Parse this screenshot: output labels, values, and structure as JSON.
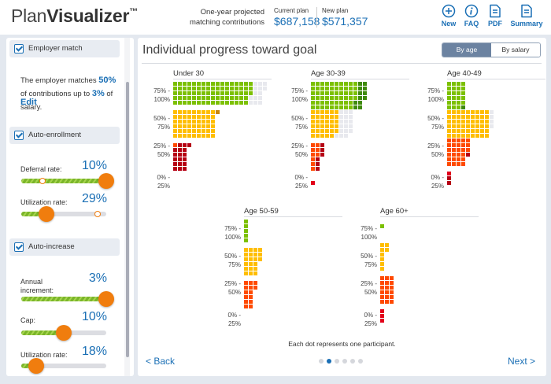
{
  "app": {
    "logo_thin": "Plan",
    "logo_bold": "Visualizer",
    "logo_mark": "™"
  },
  "header": {
    "projection_label_line1": "One-year projected",
    "projection_label_line2": "matching contributions",
    "current_plan_label": "Current plan",
    "current_plan_value": "$687,158",
    "new_plan_label": "New plan",
    "new_plan_value": "$571,357",
    "tools": [
      {
        "label": "New",
        "icon": "plus-circle-icon"
      },
      {
        "label": "FAQ",
        "icon": "info-circle-icon"
      },
      {
        "label": "PDF",
        "icon": "document-icon"
      },
      {
        "label": "Summary",
        "icon": "document-icon"
      }
    ]
  },
  "sidebar": {
    "employer_match": {
      "title": "Employer match",
      "checked": true,
      "text_1": "The employer matches ",
      "match_pct": "50%",
      "text_2": " of contributions up to ",
      "salary_pct": "3%",
      "text_3": " of salary.",
      "edit_label": "Edit"
    },
    "auto_enrollment": {
      "title": "Auto-enrollment",
      "checked": true,
      "sliders": [
        {
          "label": "Deferral rate:",
          "value": "10%",
          "fill": 1.0,
          "marker": 0.25
        },
        {
          "label": "Utilization rate:",
          "value": "29%",
          "fill": 0.3,
          "marker": 0.9
        }
      ]
    },
    "auto_increase": {
      "title": "Auto-increase",
      "checked": true,
      "sliders": [
        {
          "label": "Annual increment:",
          "value": "3%",
          "fill": 1.0
        },
        {
          "label": "Cap:",
          "value": "10%",
          "fill": 0.5
        },
        {
          "label": "Utilization rate:",
          "value": "18%",
          "fill": 0.18
        }
      ]
    }
  },
  "main": {
    "title": "Individual progress toward goal",
    "toggle": {
      "by_age": "By age",
      "by_salary": "By salary",
      "active": "by_age"
    },
    "footnote": "Each dot represents one participant.",
    "back_label": "< Back",
    "next_label": "Next >",
    "pager": {
      "pages": 6,
      "current": 2
    }
  },
  "colors": {
    "green": "#7cc000",
    "green_dark": "#3f8a0c",
    "yellow": "#ffbe00",
    "yellow_dark": "#c8860e",
    "orange": "#ff4a00",
    "red": "#e2001a",
    "red_dark": "#b50013",
    "gray": "#e8e9ee",
    "accent": "#1a6fb5",
    "knob": "#f07d0e"
  },
  "chart_data": {
    "type": "dot-matrix",
    "title": "Individual progress toward goal",
    "unit": "Each dot represents one participant.",
    "bands": [
      "75% - 100%",
      "50% - 75%",
      "25% - 50%",
      "0% - 25%"
    ],
    "groups": [
      {
        "name": "Under 30",
        "rows": [
          [
            [
              "green",
              17
            ],
            [
              "gray",
              3
            ]
          ],
          [
            [
              "green",
              17
            ],
            [
              "gray",
              3
            ]
          ],
          [
            [
              "green",
              17
            ],
            [
              "gray",
              2
            ]
          ],
          [
            [
              "green",
              16
            ],
            [
              "gray",
              3
            ]
          ],
          [
            [
              "green",
              16
            ],
            [
              "gray",
              3
            ]
          ],
          null,
          [
            [
              "yellow",
              9
            ],
            [
              "yellow_dark",
              1
            ]
          ],
          [
            [
              "yellow",
              9
            ]
          ],
          [
            [
              "yellow",
              9
            ]
          ],
          [
            [
              "yellow",
              9
            ]
          ],
          [
            [
              "yellow",
              9
            ]
          ],
          [
            [
              "yellow",
              9
            ]
          ],
          null,
          [
            [
              "orange",
              1
            ],
            [
              "red_dark",
              3
            ]
          ],
          [
            [
              "red_dark",
              3
            ]
          ],
          [
            [
              "red_dark",
              3
            ]
          ],
          [
            [
              "red_dark",
              3
            ]
          ],
          [
            [
              "red_dark",
              3
            ]
          ],
          [
            [
              "red_dark",
              3
            ]
          ],
          null,
          [],
          []
        ]
      },
      {
        "name": "Age 30-39",
        "rows": [
          [
            [
              "green",
              10
            ],
            [
              "green_dark",
              2
            ]
          ],
          [
            [
              "green",
              10
            ],
            [
              "green_dark",
              2
            ]
          ],
          [
            [
              "green",
              10
            ],
            [
              "green_dark",
              2
            ]
          ],
          [
            [
              "green",
              10
            ],
            [
              "green_dark",
              2
            ]
          ],
          [
            [
              "green",
              9
            ],
            [
              "green_dark",
              2
            ]
          ],
          [
            [
              "green",
              9
            ],
            [
              "green_dark",
              2
            ]
          ],
          [
            [
              "yellow",
              6
            ],
            [
              "gray",
              3
            ]
          ],
          [
            [
              "yellow",
              6
            ],
            [
              "gray",
              3
            ]
          ],
          [
            [
              "yellow",
              6
            ],
            [
              "gray",
              3
            ]
          ],
          [
            [
              "yellow",
              6
            ],
            [
              "gray",
              3
            ]
          ],
          [
            [
              "yellow",
              6
            ],
            [
              "gray",
              3
            ]
          ],
          [
            [
              "yellow",
              5
            ],
            [
              "gray",
              3
            ]
          ],
          null,
          [
            [
              "orange",
              2
            ],
            [
              "red_dark",
              1
            ]
          ],
          [
            [
              "orange",
              2
            ],
            [
              "red_dark",
              1
            ]
          ],
          [
            [
              "orange",
              2
            ],
            [
              "red_dark",
              1
            ]
          ],
          [
            [
              "orange",
              1
            ],
            [
              "red_dark",
              1
            ]
          ],
          [
            [
              "orange",
              1
            ],
            [
              "red_dark",
              1
            ]
          ],
          [
            [
              "orange",
              1
            ],
            [
              "red_dark",
              1
            ]
          ],
          null,
          null,
          [
            [
              "red",
              1
            ]
          ]
        ]
      },
      {
        "name": "Age 40-49",
        "rows": [
          [
            [
              "green",
              4
            ]
          ],
          [
            [
              "green",
              4
            ]
          ],
          [
            [
              "green",
              4
            ]
          ],
          [
            [
              "green",
              4
            ]
          ],
          [
            [
              "green",
              4
            ]
          ],
          [
            [
              "green",
              3
            ],
            [
              "green_dark",
              1
            ]
          ],
          [
            [
              "yellow",
              9
            ],
            [
              "gray",
              1
            ]
          ],
          [
            [
              "yellow",
              9
            ],
            [
              "gray",
              1
            ]
          ],
          [
            [
              "yellow",
              9
            ],
            [
              "gray",
              1
            ]
          ],
          [
            [
              "yellow",
              9
            ],
            [
              "gray",
              1
            ]
          ],
          [
            [
              "yellow",
              9
            ]
          ],
          [
            [
              "yellow",
              9
            ]
          ],
          [
            [
              "orange",
              5
            ]
          ],
          [
            [
              "orange",
              5
            ]
          ],
          [
            [
              "orange",
              5
            ]
          ],
          [
            [
              "orange",
              4
            ],
            [
              "red_dark",
              1
            ]
          ],
          [
            [
              "orange",
              4
            ]
          ],
          [
            [
              "orange",
              4
            ]
          ],
          null,
          [
            [
              "red",
              1
            ]
          ],
          [
            [
              "red_dark",
              1
            ]
          ],
          [
            [
              "red_dark",
              1
            ]
          ]
        ]
      },
      {
        "name": "Age 50-59",
        "rows": [
          [
            [
              "green",
              1
            ]
          ],
          [
            [
              "green",
              1
            ]
          ],
          [
            [
              "green",
              1
            ]
          ],
          [
            [
              "green",
              1
            ]
          ],
          [
            [
              "green",
              1
            ]
          ],
          null,
          [
            [
              "yellow",
              4
            ]
          ],
          [
            [
              "yellow",
              4
            ]
          ],
          [
            [
              "yellow",
              4
            ]
          ],
          [
            [
              "yellow",
              3
            ]
          ],
          [
            [
              "yellow",
              3
            ]
          ],
          [
            [
              "yellow",
              3
            ]
          ],
          null,
          [
            [
              "orange",
              3
            ]
          ],
          [
            [
              "orange",
              3
            ]
          ],
          [
            [
              "orange",
              2
            ]
          ],
          [
            [
              "orange",
              2
            ]
          ],
          [
            [
              "orange",
              2
            ]
          ],
          [
            [
              "orange",
              2
            ]
          ],
          null,
          [],
          []
        ]
      },
      {
        "name": "Age 60+",
        "rows": [
          null,
          [
            [
              "green",
              1
            ]
          ],
          null,
          null,
          null,
          [
            [
              "yellow",
              2
            ]
          ],
          [
            [
              "yellow",
              2
            ]
          ],
          [
            [
              "yellow",
              1
            ]
          ],
          [
            [
              "yellow",
              1
            ]
          ],
          [
            [
              "yellow",
              1
            ]
          ],
          [
            [
              "yellow",
              1
            ]
          ],
          null,
          [
            [
              "orange",
              3
            ]
          ],
          [
            [
              "orange",
              3
            ]
          ],
          [
            [
              "orange",
              3
            ]
          ],
          [
            [
              "orange",
              3
            ]
          ],
          [
            [
              "orange",
              3
            ]
          ],
          [
            [
              "orange",
              3
            ]
          ],
          null,
          [
            [
              "red",
              1
            ]
          ],
          [
            [
              "red",
              1
            ]
          ],
          [
            [
              "red",
              1
            ]
          ]
        ]
      }
    ]
  }
}
